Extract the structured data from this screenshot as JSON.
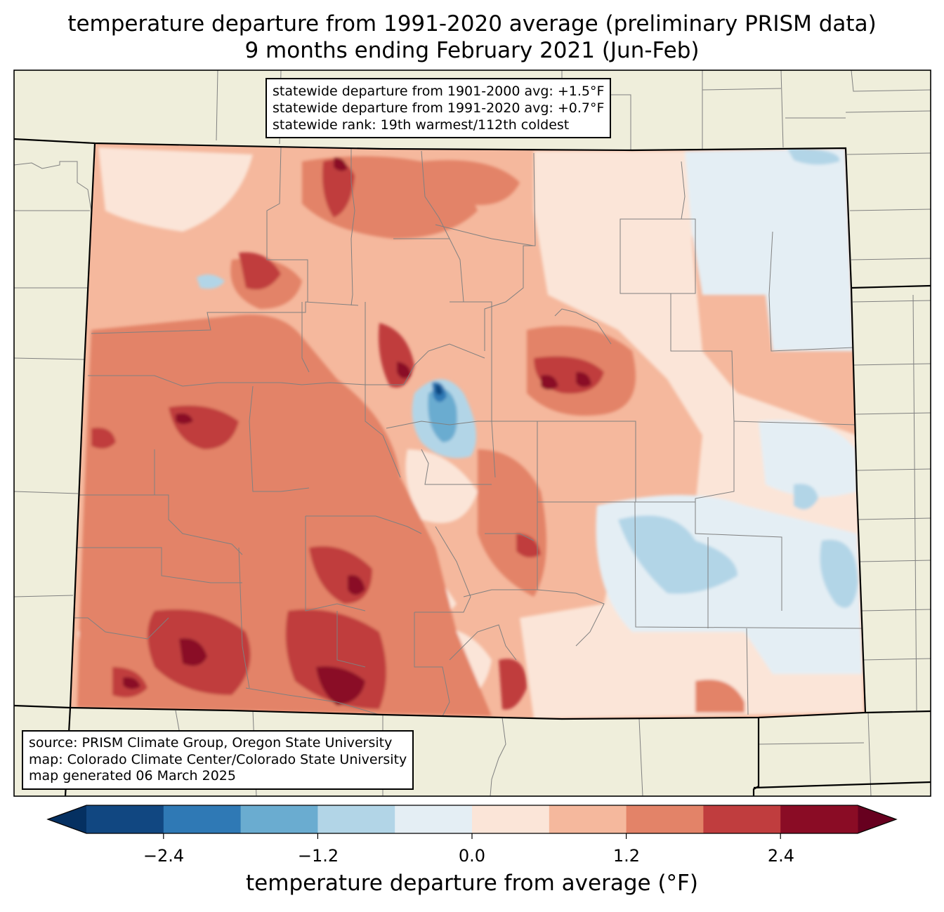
{
  "title": {
    "line1": "temperature departure from 1991-2020 average (preliminary PRISM data)",
    "line2": "9 months ending February 2021 (Jun-Feb)"
  },
  "stats": {
    "line1": "statewide departure from 1901-2000 avg: +1.5°F",
    "line2": "statewide departure from 1991-2020 avg: +0.7°F",
    "line3": "statewide rank: 19th warmest/112th coldest"
  },
  "source": {
    "line1": "source: PRISM Climate Group, Oregon State University",
    "line2": "map: Colorado Climate Center/Colorado State University",
    "line3": "map generated 06 March 2025"
  },
  "colorbar": {
    "label": "temperature departure from average (°F)",
    "ticks": [
      "−2.4",
      "−1.2",
      "0.0",
      "1.2",
      "2.4"
    ],
    "bins": [
      -3.0,
      -2.4,
      -1.8,
      -1.2,
      -0.6,
      0.0,
      0.6,
      1.2,
      1.8,
      2.4,
      3.0
    ],
    "colors": [
      "#114781",
      "#2f79b5",
      "#6aacd0",
      "#b2d5e7",
      "#e4eef4",
      "#fbe5d8",
      "#f5b89d",
      "#e38368",
      "#c03d3e",
      "#8a0c25"
    ],
    "under_color": "#053061",
    "over_color": "#67001f"
  },
  "colors": {
    "land": "#efeedb",
    "county_lines": "#808080",
    "state_lines": "#000000"
  }
}
